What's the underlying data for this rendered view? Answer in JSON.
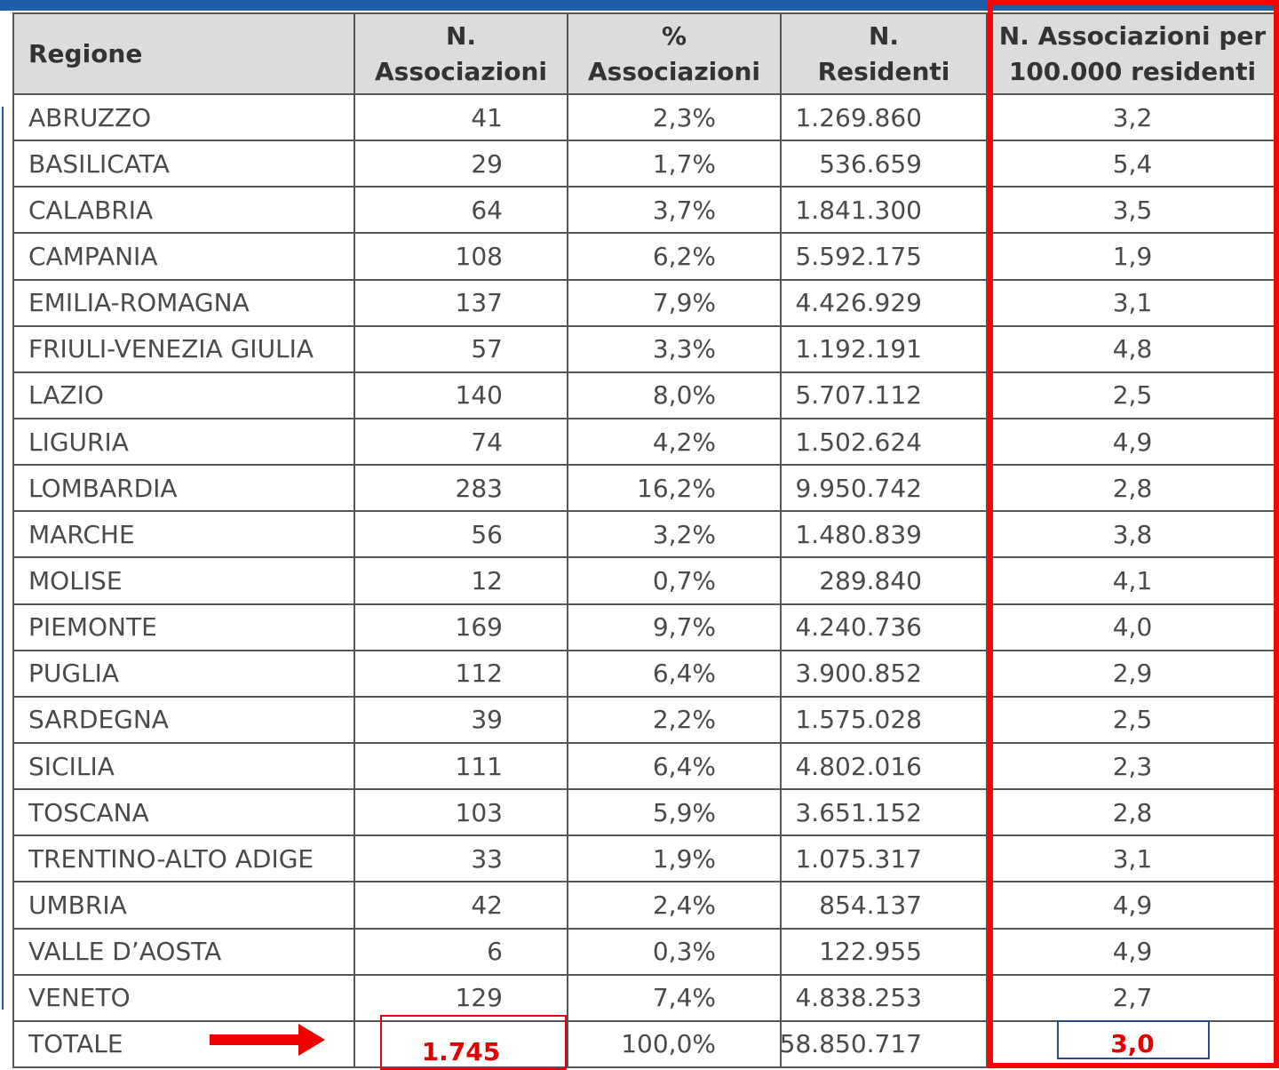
{
  "table": {
    "header": [
      [
        "Regione"
      ],
      [
        "N.",
        "Associazioni"
      ],
      [
        "%",
        "Associazioni"
      ],
      [
        "N.",
        "Residenti"
      ],
      [
        "N. Associazioni per",
        "100.000 residenti"
      ]
    ],
    "rows": [
      [
        "ABRUZZO",
        "41",
        "2,3%",
        "1.269.860",
        "3,2"
      ],
      [
        "BASILICATA",
        "29",
        "1,7%",
        "536.659",
        "5,4"
      ],
      [
        "CALABRIA",
        "64",
        "3,7%",
        "1.841.300",
        "3,5"
      ],
      [
        "CAMPANIA",
        "108",
        "6,2%",
        "5.592.175",
        "1,9"
      ],
      [
        "EMILIA-ROMAGNA",
        "137",
        "7,9%",
        "4.426.929",
        "3,1"
      ],
      [
        "FRIULI-VENEZIA GIULIA",
        "57",
        "3,3%",
        "1.192.191",
        "4,8"
      ],
      [
        "LAZIO",
        "140",
        "8,0%",
        "5.707.112",
        "2,5"
      ],
      [
        "LIGURIA",
        "74",
        "4,2%",
        "1.502.624",
        "4,9"
      ],
      [
        "LOMBARDIA",
        "283",
        "16,2%",
        "9.950.742",
        "2,8"
      ],
      [
        "MARCHE",
        "56",
        "3,2%",
        "1.480.839",
        "3,8"
      ],
      [
        "MOLISE",
        "12",
        "0,7%",
        "289.840",
        "4,1"
      ],
      [
        "PIEMONTE",
        "169",
        "9,7%",
        "4.240.736",
        "4,0"
      ],
      [
        "PUGLIA",
        "112",
        "6,4%",
        "3.900.852",
        "2,9"
      ],
      [
        "SARDEGNA",
        "39",
        "2,2%",
        "1.575.028",
        "2,5"
      ],
      [
        "SICILIA",
        "111",
        "6,4%",
        "4.802.016",
        "2,3"
      ],
      [
        "TOSCANA",
        "103",
        "5,9%",
        "3.651.152",
        "2,8"
      ],
      [
        "TRENTINO-ALTO ADIGE",
        "33",
        "1,9%",
        "1.075.317",
        "3,1"
      ],
      [
        "UMBRIA",
        "42",
        "2,4%",
        "854.137",
        "4,9"
      ],
      [
        "VALLE D’AOSTA",
        "6",
        "0,3%",
        "122.955",
        "4,9"
      ],
      [
        "VENETO",
        "129",
        "7,4%",
        "4.838.253",
        "2,7"
      ],
      [
        "TOTALE",
        "1.745",
        "100,0%",
        "58.850.717",
        "3,0"
      ]
    ]
  }
}
